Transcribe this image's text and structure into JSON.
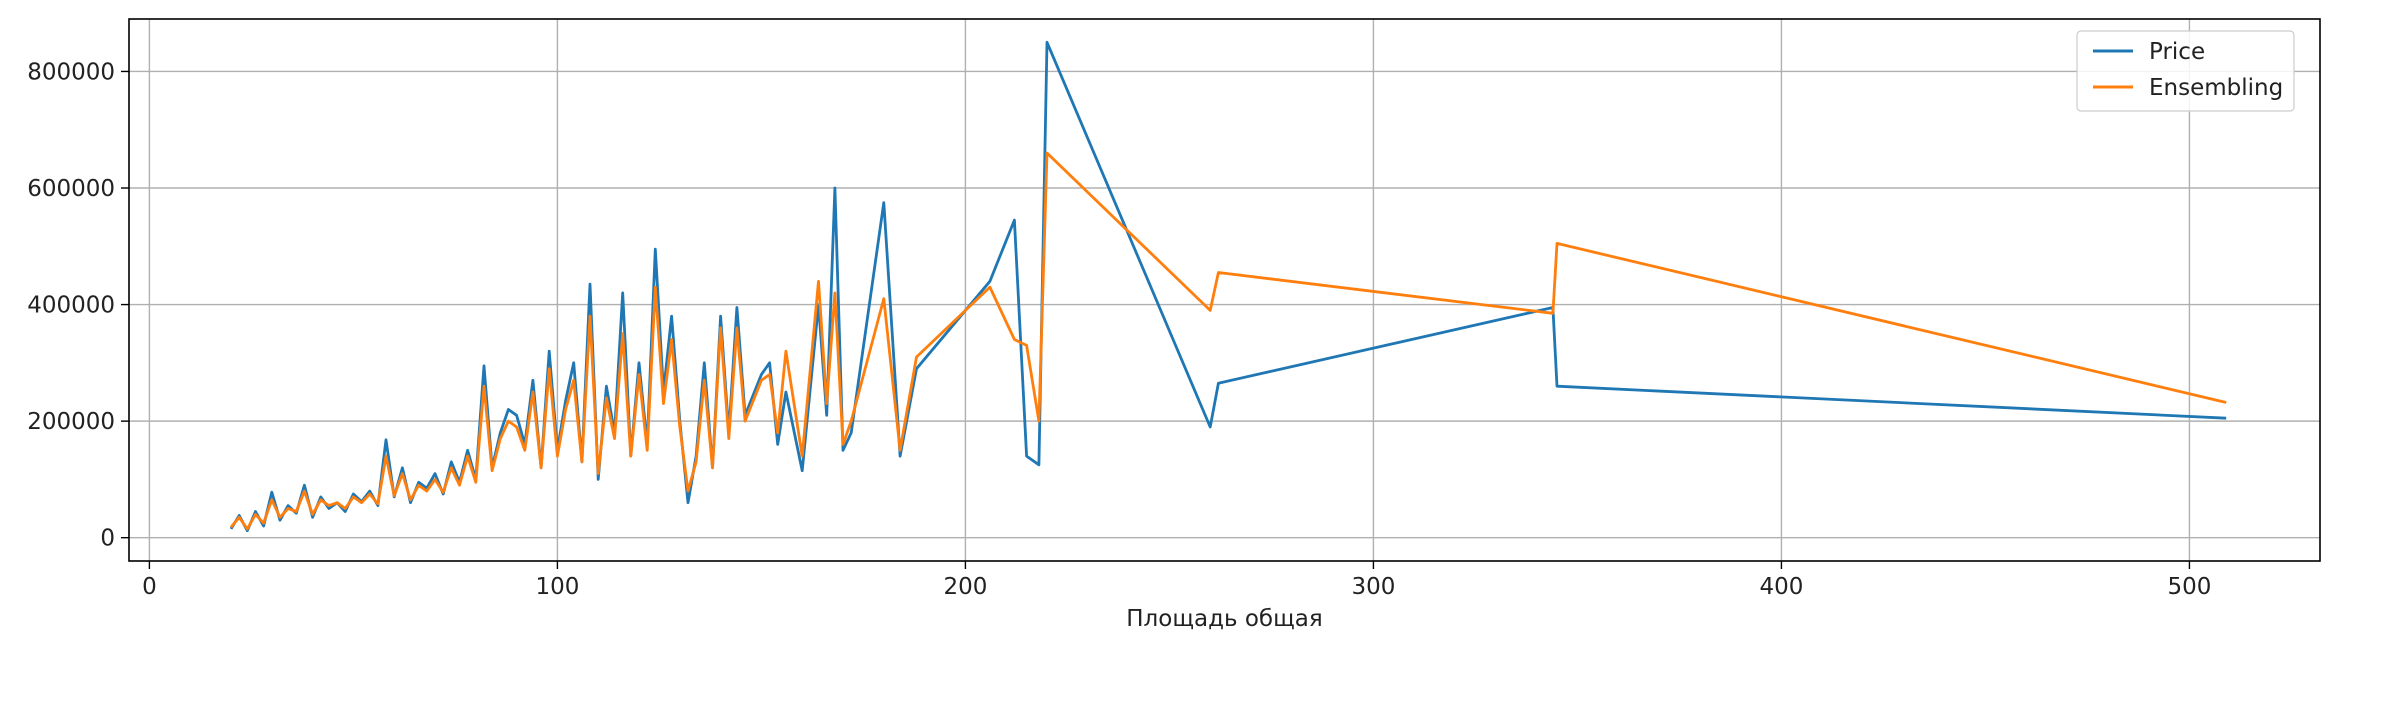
{
  "chart_data": {
    "type": "line",
    "title": "",
    "xlabel": "Площадь общая",
    "ylabel": "",
    "xlim": [
      -5,
      532
    ],
    "ylim": [
      -40000,
      890000
    ],
    "grid": true,
    "legend_position": "top-right",
    "x_ticks": [
      0,
      100,
      200,
      300,
      400,
      500
    ],
    "x_tick_labels": [
      "0",
      "100",
      "200",
      "300",
      "400",
      "500"
    ],
    "y_ticks": [
      0,
      200000,
      400000,
      600000,
      800000
    ],
    "y_tick_labels": [
      "0",
      "200000",
      "400000",
      "600000",
      "800000"
    ],
    "colors": {
      "Price": "#1f77b4",
      "Ensembling": "#ff7f0e",
      "grid": "#b0b0b0",
      "axes": "#000000"
    },
    "series": [
      {
        "name": "Price",
        "x": [
          20,
          22,
          24,
          26,
          28,
          30,
          32,
          34,
          36,
          38,
          40,
          42,
          44,
          46,
          48,
          50,
          52,
          54,
          56,
          58,
          60,
          62,
          64,
          66,
          68,
          70,
          72,
          74,
          76,
          78,
          80,
          82,
          84,
          86,
          88,
          90,
          92,
          94,
          96,
          98,
          100,
          102,
          104,
          106,
          108,
          110,
          112,
          114,
          116,
          118,
          120,
          122,
          124,
          126,
          128,
          130,
          132,
          134,
          136,
          138,
          140,
          142,
          144,
          146,
          150,
          152,
          154,
          156,
          160,
          164,
          166,
          168,
          170,
          172,
          180,
          184,
          188,
          206,
          212,
          215,
          218,
          220,
          260,
          262,
          344,
          345,
          509
        ],
        "y": [
          15000,
          38000,
          12000,
          45000,
          20000,
          78000,
          30000,
          55000,
          42000,
          90000,
          35000,
          70000,
          50000,
          60000,
          45000,
          75000,
          62000,
          80000,
          55000,
          168000,
          70000,
          120000,
          60000,
          95000,
          85000,
          110000,
          75000,
          130000,
          95000,
          150000,
          100000,
          295000,
          120000,
          180000,
          220000,
          210000,
          160000,
          270000,
          120000,
          320000,
          150000,
          235000,
          300000,
          130000,
          435000,
          100000,
          260000,
          180000,
          420000,
          140000,
          300000,
          160000,
          495000,
          250000,
          380000,
          200000,
          60000,
          140000,
          300000,
          120000,
          380000,
          180000,
          395000,
          210000,
          280000,
          300000,
          160000,
          250000,
          115000,
          400000,
          210000,
          600000,
          150000,
          180000,
          575000,
          140000,
          290000,
          440000,
          545000,
          140000,
          125000,
          850000,
          190000,
          265000,
          395000,
          260000,
          205000
        ]
      },
      {
        "name": "Ensembling",
        "x": [
          20,
          22,
          24,
          26,
          28,
          30,
          32,
          34,
          36,
          38,
          40,
          42,
          44,
          46,
          48,
          50,
          52,
          54,
          56,
          58,
          60,
          62,
          64,
          66,
          68,
          70,
          72,
          74,
          76,
          78,
          80,
          82,
          84,
          86,
          88,
          90,
          92,
          94,
          96,
          98,
          100,
          102,
          104,
          106,
          108,
          110,
          112,
          114,
          116,
          118,
          120,
          122,
          124,
          126,
          128,
          130,
          132,
          134,
          136,
          138,
          140,
          142,
          144,
          146,
          150,
          152,
          154,
          156,
          160,
          164,
          166,
          168,
          170,
          172,
          180,
          184,
          188,
          206,
          212,
          215,
          218,
          220,
          260,
          262,
          344,
          345,
          509
        ],
        "y": [
          18000,
          35000,
          15000,
          40000,
          25000,
          65000,
          35000,
          50000,
          45000,
          80000,
          40000,
          65000,
          55000,
          60000,
          50000,
          70000,
          60000,
          75000,
          58000,
          140000,
          72000,
          110000,
          65000,
          90000,
          80000,
          100000,
          78000,
          120000,
          90000,
          140000,
          95000,
          260000,
          115000,
          170000,
          200000,
          190000,
          150000,
          250000,
          120000,
          290000,
          140000,
          220000,
          270000,
          130000,
          380000,
          110000,
          240000,
          170000,
          350000,
          140000,
          280000,
          150000,
          430000,
          230000,
          340000,
          190000,
          80000,
          130000,
          270000,
          120000,
          360000,
          170000,
          360000,
          200000,
          270000,
          280000,
          180000,
          320000,
          140000,
          440000,
          230000,
          420000,
          160000,
          200000,
          410000,
          150000,
          310000,
          430000,
          340000,
          330000,
          200000,
          660000,
          390000,
          455000,
          385000,
          505000,
          232000
        ]
      }
    ]
  }
}
